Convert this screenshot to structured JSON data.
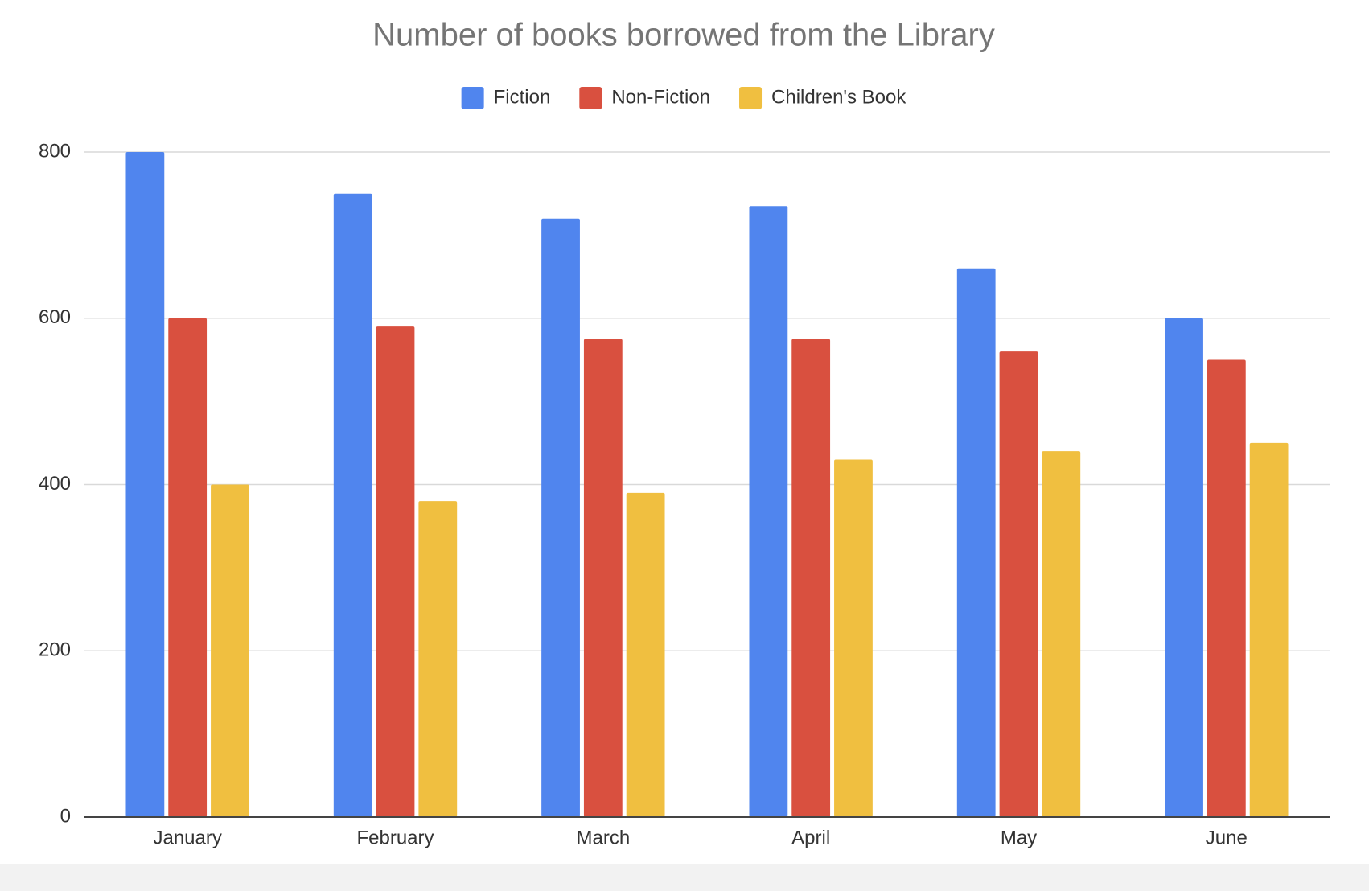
{
  "chart_data": {
    "type": "bar",
    "title": "Number of books borrowed from the Library",
    "categories": [
      "January",
      "February",
      "March",
      "April",
      "May",
      "June"
    ],
    "series": [
      {
        "name": "Fiction",
        "color": "#5085ee",
        "values": [
          800,
          750,
          720,
          735,
          660,
          600
        ]
      },
      {
        "name": "Non-Fiction",
        "color": "#d9503f",
        "values": [
          600,
          590,
          575,
          575,
          560,
          550
        ]
      },
      {
        "name": "Children's Book",
        "color": "#f0bf40",
        "values": [
          400,
          380,
          390,
          430,
          440,
          450
        ]
      }
    ],
    "ylim": [
      0,
      800
    ],
    "yticks": [
      0,
      200,
      400,
      600,
      800
    ],
    "grid": true,
    "legend": "top"
  }
}
